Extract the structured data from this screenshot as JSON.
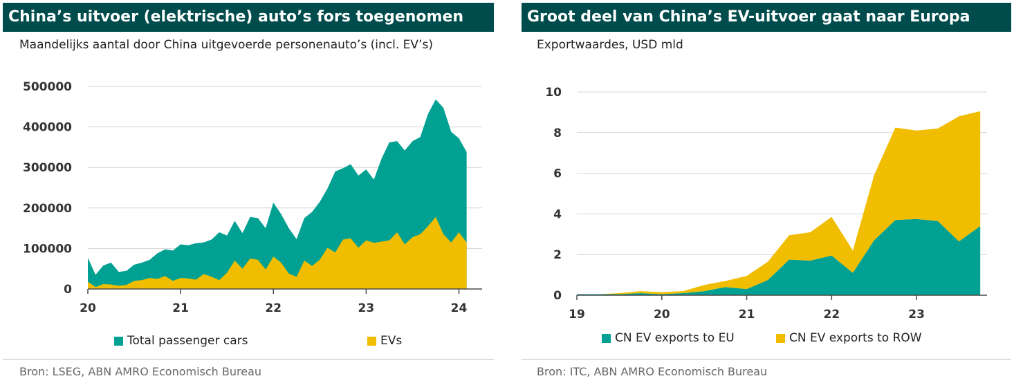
{
  "left": {
    "title": "China’s uitvoer (elektrische) auto’s fors toegenomen",
    "subtitle": "Maandelijks aantal door China uitgevoerde personenauto’s (incl. EV’s)",
    "source": "Bron: LSEG, ABN AMRO Economisch Bureau",
    "legend": [
      {
        "label": "Total passenger cars",
        "color": "#00a092"
      },
      {
        "label": "EVs",
        "color": "#f0bd00"
      }
    ]
  },
  "right": {
    "title": "Groot deel van China’s EV-uitvoer gaat naar Europa",
    "subtitle": "Exportwaardes, USD mld",
    "source": "Bron: ITC, ABN AMRO Economisch Bureau",
    "legend": [
      {
        "label": "CN EV exports to EU",
        "color": "#00a092"
      },
      {
        "label": "CN EV exports to ROW",
        "color": "#f0bd00"
      }
    ]
  },
  "chart_data": [
    {
      "type": "area",
      "title": "China’s uitvoer (elektrische) auto’s fors toegenomen",
      "subtitle": "Maandelijks aantal door China uitgevoerde personenauto’s (incl. EV’s)",
      "x_start": 2020.0,
      "x_step_months": 1,
      "x_tick_labels": [
        "20",
        "21",
        "22",
        "23",
        "24"
      ],
      "x_ticks": [
        2020,
        2021,
        2022,
        2023,
        2024
      ],
      "xlim": [
        2020.0,
        2024.25
      ],
      "ylim": [
        0,
        500000
      ],
      "y_ticks": [
        0,
        100000,
        200000,
        300000,
        400000,
        500000
      ],
      "grid": true,
      "stacking": "overlay",
      "legend_position": "bottom",
      "series": [
        {
          "name": "Total passenger cars",
          "color": "#00a092",
          "values": [
            77000,
            35000,
            58000,
            65000,
            42000,
            45000,
            60000,
            65000,
            72000,
            88000,
            98000,
            95000,
            110000,
            108000,
            113000,
            115000,
            122000,
            140000,
            132000,
            168000,
            138000,
            178000,
            175000,
            150000,
            213000,
            185000,
            150000,
            123000,
            175000,
            190000,
            215000,
            248000,
            290000,
            298000,
            308000,
            280000,
            295000,
            270000,
            322000,
            362000,
            365000,
            342000,
            365000,
            375000,
            432000,
            468000,
            447000,
            388000,
            372000,
            338000
          ]
        },
        {
          "name": "EVs",
          "color": "#f0bd00",
          "values": [
            18000,
            5000,
            12000,
            11000,
            8000,
            10000,
            20000,
            22000,
            27000,
            25000,
            32000,
            20000,
            27000,
            26000,
            23000,
            37000,
            30000,
            22000,
            40000,
            70000,
            50000,
            75000,
            72000,
            48000,
            80000,
            65000,
            38000,
            30000,
            70000,
            57000,
            72000,
            102000,
            90000,
            122000,
            125000,
            102000,
            120000,
            114000,
            117000,
            120000,
            140000,
            110000,
            128000,
            135000,
            155000,
            178000,
            135000,
            115000,
            140000,
            115000
          ]
        }
      ]
    },
    {
      "type": "area",
      "title": "Groot deel van China’s EV-uitvoer gaat naar Europa",
      "subtitle": "Exportwaardes, USD mld",
      "x_tick_labels": [
        "19",
        "20",
        "21",
        "22",
        "23"
      ],
      "x_ticks": [
        2019,
        2020,
        2021,
        2022,
        2023
      ],
      "xlim": [
        2019.0,
        2023.83
      ],
      "ylim": [
        0,
        10
      ],
      "y_ticks": [
        0,
        2,
        4,
        6,
        8,
        10
      ],
      "grid": true,
      "stacking": "stacked",
      "legend_position": "bottom",
      "x": [
        2019.0,
        2019.25,
        2019.5,
        2019.75,
        2020.0,
        2020.25,
        2020.5,
        2020.75,
        2021.0,
        2021.25,
        2021.5,
        2021.75,
        2022.0,
        2022.25,
        2022.5,
        2022.75,
        2023.0,
        2023.25,
        2023.5,
        2023.75
      ],
      "series": [
        {
          "name": "CN EV exports to EU",
          "color": "#00a092",
          "values": [
            0.05,
            0.05,
            0.05,
            0.1,
            0.05,
            0.1,
            0.2,
            0.4,
            0.3,
            0.75,
            1.75,
            1.7,
            1.95,
            1.1,
            2.7,
            3.7,
            3.75,
            3.65,
            2.65,
            3.4
          ]
        },
        {
          "name": "CN EV exports to ROW",
          "color": "#f0bd00",
          "values": [
            0.0,
            0.0,
            0.05,
            0.1,
            0.1,
            0.1,
            0.3,
            0.3,
            0.65,
            0.9,
            1.2,
            1.4,
            1.9,
            1.1,
            3.2,
            4.55,
            4.35,
            4.55,
            6.15,
            5.65
          ]
        }
      ]
    }
  ]
}
